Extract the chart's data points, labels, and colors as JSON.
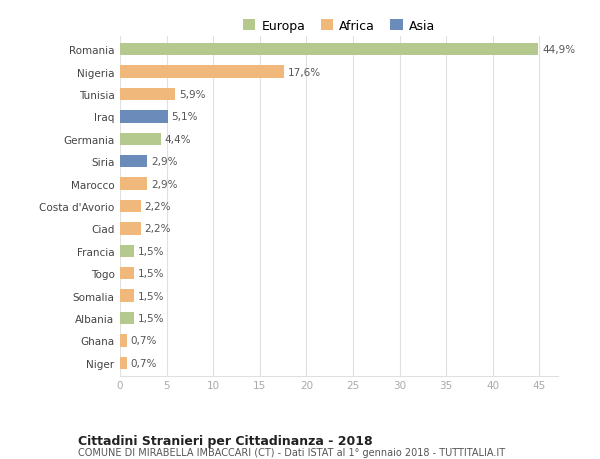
{
  "categories": [
    "Romania",
    "Nigeria",
    "Tunisia",
    "Iraq",
    "Germania",
    "Siria",
    "Marocco",
    "Costa d'Avorio",
    "Ciad",
    "Francia",
    "Togo",
    "Somalia",
    "Albania",
    "Ghana",
    "Niger"
  ],
  "values": [
    44.9,
    17.6,
    5.9,
    5.1,
    4.4,
    2.9,
    2.9,
    2.2,
    2.2,
    1.5,
    1.5,
    1.5,
    1.5,
    0.7,
    0.7
  ],
  "labels": [
    "44,9%",
    "17,6%",
    "5,9%",
    "5,1%",
    "4,4%",
    "2,9%",
    "2,9%",
    "2,2%",
    "2,2%",
    "1,5%",
    "1,5%",
    "1,5%",
    "1,5%",
    "0,7%",
    "0,7%"
  ],
  "colors": [
    "#b5c98e",
    "#f0b87a",
    "#f0b87a",
    "#6b8cba",
    "#b5c98e",
    "#6b8cba",
    "#f0b87a",
    "#f0b87a",
    "#f0b87a",
    "#b5c98e",
    "#f0b87a",
    "#f0b87a",
    "#b5c98e",
    "#f0b87a",
    "#f0b87a"
  ],
  "legend_labels": [
    "Europa",
    "Africa",
    "Asia"
  ],
  "legend_colors": [
    "#b5c98e",
    "#f0b87a",
    "#6b8cba"
  ],
  "title1": "Cittadini Stranieri per Cittadinanza - 2018",
  "title2": "COMUNE DI MIRABELLA IMBACCARI (CT) - Dati ISTAT al 1° gennaio 2018 - TUTTITALIA.IT",
  "xlim": [
    0,
    47
  ],
  "xticks": [
    0,
    5,
    10,
    15,
    20,
    25,
    30,
    35,
    40,
    45
  ],
  "background_color": "#ffffff",
  "grid_color": "#e0e0e0",
  "bar_height": 0.55
}
